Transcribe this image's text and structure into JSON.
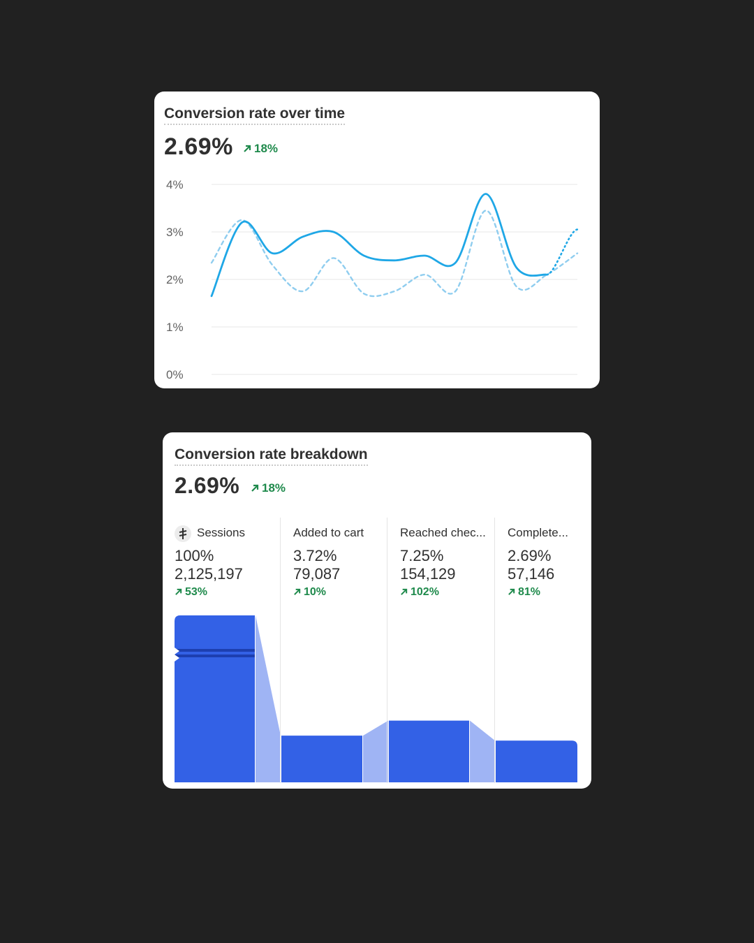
{
  "line_card": {
    "title": "Conversion rate over time",
    "metric": "2.69%",
    "delta": "18%"
  },
  "breakdown_card": {
    "title": "Conversion rate breakdown",
    "metric": "2.69%",
    "delta": "18%",
    "steps": [
      {
        "name": "Sessions",
        "percent": "100%",
        "count": "2,125,197",
        "delta": "53%"
      },
      {
        "name": "Added to cart",
        "percent": "3.72%",
        "count": "79,087",
        "delta": "10%"
      },
      {
        "name": "Reached chec...",
        "percent": "7.25%",
        "count": "154,129",
        "delta": "102%"
      },
      {
        "name": "Complete...",
        "percent": "2.69%",
        "count": "57,146",
        "delta": "81%"
      }
    ]
  },
  "colors": {
    "line_primary": "#1fa7e6",
    "line_comparison": "#8fcdef",
    "bar": "#3361e6",
    "bar_transition": "#9fb4f4",
    "positive_delta": "#1f8a4c"
  },
  "chart_data": [
    {
      "type": "line",
      "title": "Conversion rate over time",
      "y_ticks": [
        "0%",
        "1%",
        "2%",
        "3%",
        "4%"
      ],
      "ylim": [
        0,
        4
      ],
      "grid": true,
      "series": [
        {
          "style": "solid",
          "values": [
            1.65,
            3.2,
            2.55,
            2.9,
            3.0,
            2.5,
            2.4,
            2.5,
            2.35,
            3.8,
            2.25,
            2.1
          ]
        },
        {
          "style": "dashed",
          "values": [
            2.35,
            3.25,
            2.3,
            1.75,
            2.45,
            1.7,
            1.75,
            2.1,
            1.75,
            3.45,
            1.85,
            2.1,
            2.55
          ]
        }
      ],
      "projection": {
        "style": "dotted",
        "from": 2.1,
        "to": 3.05
      }
    },
    {
      "type": "bar",
      "title": "Conversion rate breakdown",
      "categories": [
        "Sessions",
        "Added to cart",
        "Reached chec...",
        "Complete..."
      ],
      "values": [
        2125197,
        79087,
        154129,
        57146
      ],
      "visual_heights": [
        1.0,
        0.28,
        0.37,
        0.25
      ]
    }
  ]
}
